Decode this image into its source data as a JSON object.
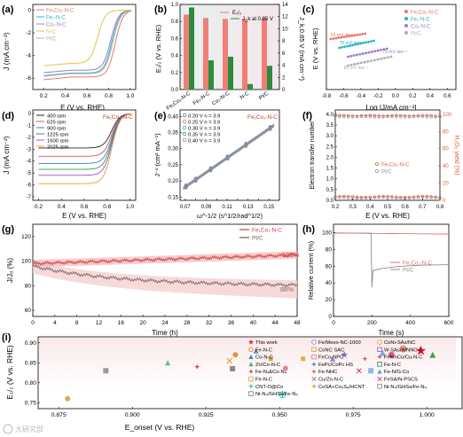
{
  "panels": {
    "a": {
      "letter": "(a)",
      "xlabel": "E (V vs. RHE)",
      "ylabel": "J (mA cm⁻²)",
      "xticks": [
        "0.2",
        "0.4",
        "0.6",
        "0.8",
        "1.0"
      ],
      "yticks": [
        "0",
        "-2",
        "-4",
        "-6"
      ],
      "legend": [
        "Fe₁Co₁-N-C",
        "Fe₁-N-C",
        "Co₁-N-C",
        "N-C",
        "Pt/C"
      ]
    },
    "b": {
      "letter": "(b)",
      "ylabel_left": "E₁/₂ (V vs. RHE)",
      "ylabel_right": "J_k,0.85 V (mA cm⁻²)",
      "legend": [
        "E₁/₂",
        "J_k at 0.85 V"
      ],
      "yticks_left": [
        "0.0",
        "0.2",
        "0.4",
        "0.6",
        "0.8",
        "1.0"
      ],
      "yticks_right": [
        "0",
        "2",
        "4",
        "6",
        "8",
        "10",
        "12",
        "14"
      ],
      "categories": [
        "Fe₁Co₁-N-C",
        "Fe₁-N-C",
        "Co₁-N-C",
        "N-C",
        "Pt/C"
      ]
    },
    "c": {
      "letter": "(c)",
      "xlabel": "Log |J/mA cm⁻²|",
      "ylabel": "E (V vs. RHE)",
      "xticks": [
        "-0.8",
        "-0.6",
        "-0.4",
        "-0.2",
        "0.0",
        "0.2",
        "0.4",
        "0.6"
      ],
      "legend": [
        "Fe₁Co₁-N-C",
        "Fe₁-N-C",
        "Co₁-N-C",
        "Pt/C"
      ],
      "slopes": [
        "63 mV dec⁻¹",
        "76 mV dec⁻¹",
        "79 mV dec⁻¹",
        "80 mV dec⁻¹"
      ]
    },
    "d": {
      "letter": "(d)",
      "xlabel": "E (V vs. RHE)",
      "ylabel": "J (mA cm⁻²)",
      "xticks": [
        "0.2",
        "0.4",
        "0.6",
        "0.8",
        "1.0"
      ],
      "yticks": [
        "0",
        "-1",
        "-2",
        "-3",
        "-4",
        "-5",
        "-6",
        "-7"
      ],
      "legend": [
        "400 rpm",
        "625 rpm",
        "900 rpm",
        "1225 rpm",
        "1600 rpm",
        "2025 rpm"
      ],
      "sample": "Fe₁Co₁-N-C"
    },
    "e": {
      "letter": "(e)",
      "xlabel": "ω^-1/2 (s^1/2/rad^1/2)",
      "ylabel": "J⁻¹ (cm² mA⁻¹)",
      "xticks": [
        "0.07",
        "0.08",
        "0.09",
        "0.10",
        "0.11",
        "0.12",
        "0.13",
        "0.14",
        "0.15",
        "0.16"
      ],
      "yticks": [
        "0.15",
        "0.20",
        "0.25",
        "0.30",
        "0.35",
        "0.40"
      ],
      "legend": [
        "0.20 V   n = 3.9",
        "0.25 V   n = 3.9",
        "0.30 V   n = 3.9",
        "0.35 V   n = 3.9",
        "0.40 V   n = 3.9"
      ],
      "sample": "Fe₁Co₁-N-C"
    },
    "f": {
      "letter": "(f)",
      "xlabel": "E (V vs. RHE)",
      "ylabel_left": "Electron transfer number",
      "ylabel_right": "H₂O₂ yield (%)",
      "xticks": [
        "0.2",
        "0.3",
        "0.4",
        "0.5",
        "0.6",
        "0.7",
        "0.8"
      ],
      "yticks_left": [
        "0.0",
        "0.5",
        "1.0",
        "1.5",
        "2.0",
        "2.5",
        "3.0",
        "3.5",
        "4.0"
      ],
      "yticks_right": [
        "0",
        "20",
        "40",
        "60",
        "80",
        "100"
      ],
      "legend": [
        "Fe₁Co₁-N-C",
        "Pt/C"
      ]
    },
    "g": {
      "letter": "(g)",
      "xlabel": "Time (h)",
      "ylabel": "J/J₀ (%)",
      "xticks": [
        "0",
        "4",
        "8",
        "12",
        "16",
        "20",
        "24",
        "28",
        "32",
        "36",
        "40",
        "44",
        "48"
      ],
      "yticks": [
        "60",
        "80",
        "100",
        "120"
      ],
      "legend": [
        "Fe₁Co₁-N-C",
        "Pt/C"
      ],
      "annotation_high": "105%",
      "annotation_low": "88%"
    },
    "h": {
      "letter": "(h)",
      "xlabel": "Time (s)",
      "ylabel": "Relative current (%)",
      "xticks": [
        "0",
        "200",
        "400",
        "600"
      ],
      "yticks": [
        "0",
        "20",
        "40",
        "60",
        "80",
        "100"
      ],
      "legend": [
        "Fe₁Co₁-N-C",
        "Pt/C"
      ]
    },
    "i": {
      "letter": "(i)",
      "xlabel": "E_onset (V vs. RHE)",
      "ylabel": "E₁/₂ (V vs. RHE)",
      "xticks": [
        "0.875",
        "0.900",
        "0.925",
        "0.950",
        "0.975",
        "1.000"
      ],
      "yticks": [
        "0.75",
        "0.80",
        "0.85",
        "0.90"
      ],
      "legend": [
        "This work",
        "Fe-N-C",
        "Co-N-C",
        "Zn/Co-N-C",
        "Fe-N₄&Co-N₄",
        "Fe-N-C",
        "CNT-O@Co",
        "Ni-N₄/GHSs/Fe-N₄",
        "Fe/Meso-NC-1000",
        "CoNC SAC",
        "FeCo-NPC",
        "FePc/CoPc HS",
        "Fe-NHC",
        "Cu/Zn-N-C",
        "CoSA+Co₉S₈/HCNT",
        "CoNi-SAs/NC",
        "W-SAs/WNNC-5",
        "FeMnCo/Cu-N-C",
        "Fe-N-C",
        "Fe-N/G-Co",
        "FeSA/N-PSCS",
        "Ni-N₄/GHSs/Fe-N₄"
      ]
    }
  },
  "watermark": "大研究部"
}
